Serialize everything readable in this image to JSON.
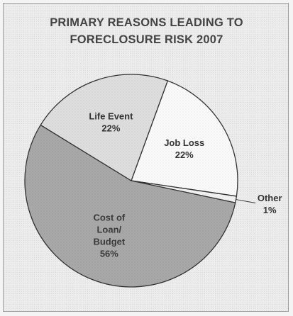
{
  "chart_data": {
    "type": "pie",
    "title_lines": [
      "PRIMARY REASONS LEADING TO",
      "FORECLOSURE RISK 2007"
    ],
    "slices": [
      {
        "name": "Job Loss",
        "label_lines": [
          "Job Loss",
          "22%"
        ],
        "value": 22,
        "color": "#fafafa"
      },
      {
        "name": "Other",
        "label_lines": [
          "Other",
          "1%"
        ],
        "value": 1,
        "color": "#f2f2f2"
      },
      {
        "name": "Cost of Loan/Budget",
        "label_lines": [
          "Cost of",
          "Loan/",
          "Budget",
          "56%"
        ],
        "value": 56,
        "color": "#a8a8a8"
      },
      {
        "name": "Life Event",
        "label_lines": [
          "Life Event",
          "22%"
        ],
        "value": 22,
        "color": "#dedede"
      }
    ],
    "start_angle_deg": -70,
    "legend": "none"
  }
}
